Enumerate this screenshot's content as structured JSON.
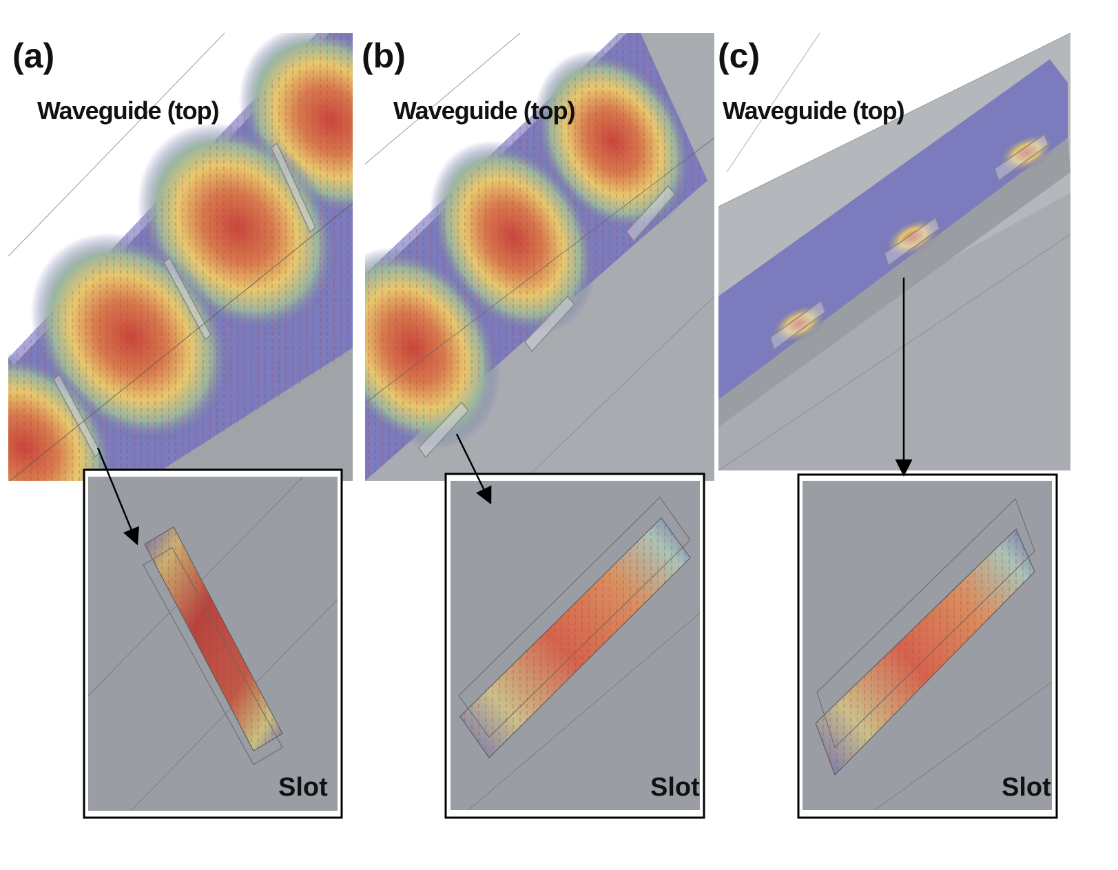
{
  "panels": [
    {
      "id": "a",
      "letter": "(a)",
      "waveguide_label": "Waveguide (top)",
      "slot_label": "Slot"
    },
    {
      "id": "b",
      "letter": "(b)",
      "waveguide_label": "Waveguide (top)",
      "slot_label": "Slot"
    },
    {
      "id": "c",
      "letter": "(c)",
      "waveguide_label": "Waveguide (top)",
      "slot_label": "Slot"
    }
  ],
  "colors": {
    "field_high": "#c8463c",
    "field_mid": "#e6c86e",
    "field_low": "#6e6eb4",
    "metal": "#a0a3a8",
    "inset_bg": "#9a9ea4",
    "frame": "#000000"
  }
}
